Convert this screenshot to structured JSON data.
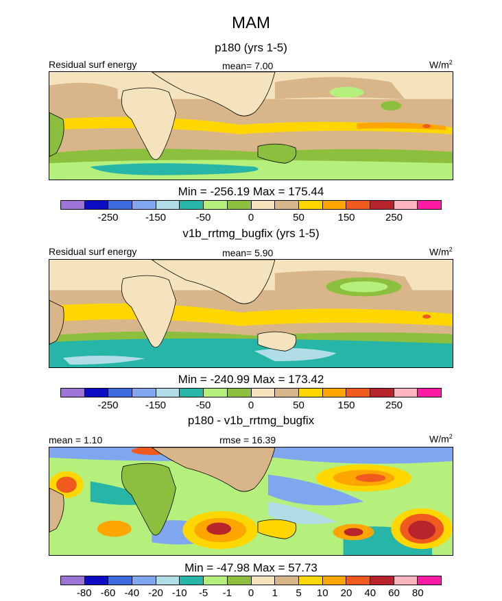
{
  "title": "MAM",
  "panels": [
    {
      "subtitle": "p180 (yrs 1-5)",
      "left_label": "Residual surf energy",
      "center_label": "mean=   7.00",
      "units": "W/m",
      "units_sup": "2",
      "minmax": "Min = -256.19 Max = 175.44"
    },
    {
      "subtitle": "v1b_rrtmg_bugfix (yrs 1-5)",
      "left_label": "Residual surf energy",
      "center_label": "mean=   5.90",
      "units": "W/m",
      "units_sup": "2",
      "minmax": "Min = -240.99 Max = 173.42"
    },
    {
      "subtitle": "p180 - v1b_rrtmg_bugfix",
      "left_label": "mean =   1.10",
      "center_label": "rmse =  16.39",
      "units": "W/m",
      "units_sup": "2",
      "minmax": "Min = -47.98 Max =  57.73"
    }
  ],
  "colorbar_colors": [
    "#9b74d6",
    "#0c0cc4",
    "#3e6ae0",
    "#7fa6ef",
    "#b0dde6",
    "#27b5a8",
    "#b6f07c",
    "#8cbf3e",
    "#f5e3bd",
    "#d9b68a",
    "#ffd700",
    "#ffa500",
    "#f05a1e",
    "#b8242b",
    "#ffb6c1",
    "#ff1aa4"
  ],
  "colorbar_ticks_abs": [
    "-250",
    "-150",
    "-50",
    "0",
    "50",
    "150",
    "250"
  ],
  "colorbar_ticks_diff": [
    "-80",
    "-60",
    "-40",
    "-20",
    "-10",
    "-5",
    "-1",
    "0",
    "1",
    "5",
    "10",
    "20",
    "40",
    "60",
    "80"
  ]
}
